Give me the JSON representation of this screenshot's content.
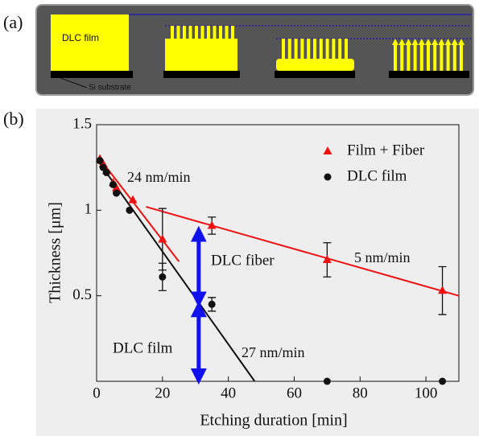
{
  "schematic": {
    "label": "(a)",
    "film_label": "DLC film",
    "substrate_label": "Si substrate"
  },
  "chart_data": {
    "type": "scatter",
    "panel_label": "(b)",
    "x_label": "Etching duration [min]",
    "y_label": "Thickness [μm]",
    "xlim": [
      0,
      110
    ],
    "xticks": [
      0,
      20,
      40,
      60,
      80,
      100
    ],
    "ylim": [
      0,
      1.5
    ],
    "yticks": [
      0.5,
      1,
      1.5
    ],
    "legend": "top-right",
    "series": [
      {
        "name": "Film + Fiber",
        "color": "#ee1111",
        "marker": "triangle",
        "x": [
          1,
          2,
          3,
          5,
          6,
          11,
          20,
          35,
          70,
          105
        ],
        "values": [
          1.3,
          1.27,
          1.23,
          1.16,
          1.13,
          1.06,
          0.83,
          0.91,
          0.71,
          0.53
        ],
        "errors": [
          null,
          null,
          null,
          null,
          null,
          null,
          0.18,
          0.05,
          0.1,
          0.14
        ]
      },
      {
        "name": "DLC film",
        "color": "#111111",
        "marker": "circle",
        "x": [
          1,
          2,
          3,
          5,
          6,
          10,
          20,
          35,
          70,
          105
        ],
        "values": [
          1.29,
          1.25,
          1.22,
          1.15,
          1.1,
          1.0,
          0.61,
          0.45,
          0,
          0
        ],
        "errors": [
          null,
          null,
          null,
          null,
          null,
          null,
          0.08,
          0.04,
          null,
          null
        ]
      }
    ],
    "fits": [
      {
        "label": "24 nm/min",
        "color": "#ee1111",
        "x": [
          1,
          25
        ],
        "y": [
          1.3,
          0.7
        ]
      },
      {
        "label": "27 nm/min",
        "color": "#111111",
        "x": [
          0,
          48
        ],
        "y": [
          1.3,
          0
        ]
      },
      {
        "label": "5 nm/min",
        "color": "#ee1111",
        "x": [
          15,
          110
        ],
        "y": [
          1.02,
          0.5
        ]
      }
    ],
    "arrows": [
      {
        "label": "DLC film",
        "color": "#1111ee",
        "x": 31,
        "y": [
          0,
          0.45
        ]
      },
      {
        "label": "DLC fiber",
        "color": "#1111ee",
        "x": 31,
        "y": [
          0.45,
          0.89
        ]
      }
    ]
  }
}
